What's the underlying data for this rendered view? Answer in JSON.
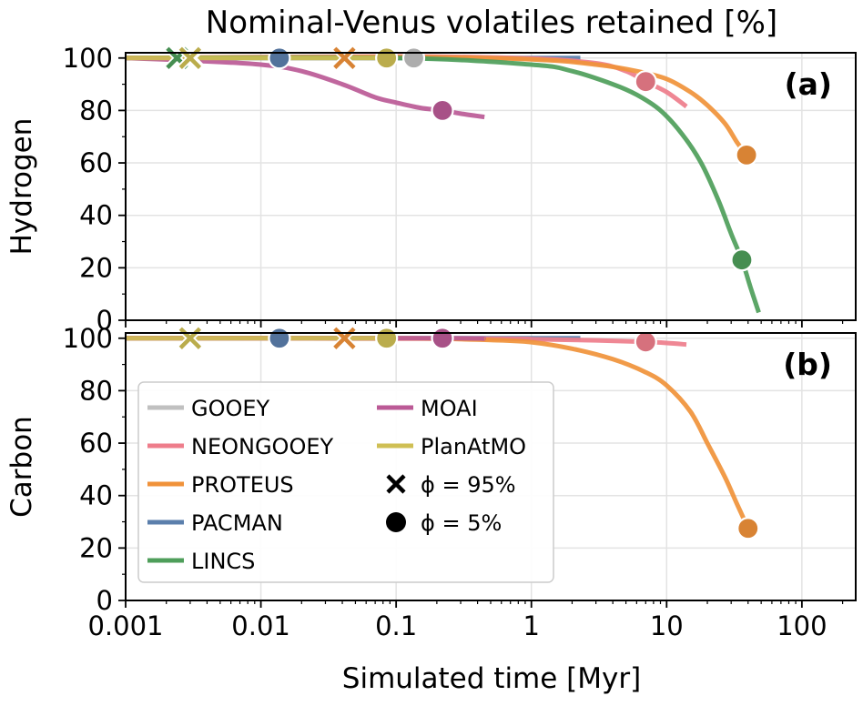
{
  "chart_data": {
    "type": "line",
    "title": "Nominal-Venus volatiles retained [%]",
    "xlabel": "Simulated time [Myr]",
    "xscale": "log",
    "xlim": [
      0.001,
      250
    ],
    "xticks": [
      0.001,
      0.01,
      0.1,
      1,
      10,
      100
    ],
    "xticklabels": [
      "0.001",
      "0.01",
      "0.1",
      "1",
      "10",
      "100"
    ],
    "grid": true,
    "legend_position": "lower-left of panel (b)",
    "legend": [
      {
        "label": "GOOEY",
        "kind": "line",
        "color": "#c0c0c0"
      },
      {
        "label": "NEONGOOEY",
        "kind": "line",
        "color": "#ee7d8b"
      },
      {
        "label": "PROTEUS",
        "kind": "line",
        "color": "#f0923a"
      },
      {
        "label": "PACMAN",
        "kind": "line",
        "color": "#5b7fac"
      },
      {
        "label": "LINCS",
        "kind": "line",
        "color": "#4e9e5a"
      },
      {
        "label": "MOAI",
        "kind": "line",
        "color": "#bb5a96"
      },
      {
        "label": "PlanAtMO",
        "kind": "line",
        "color": "#cfbf54"
      },
      {
        "label": "$\\phi = 95\\%$",
        "kind": "cross",
        "color": "#000000",
        "text": "ϕ = 95%"
      },
      {
        "label": "$\\phi = 5\\%$",
        "kind": "dot",
        "color": "#000000",
        "text": "ϕ = 5%"
      }
    ],
    "panels": [
      {
        "tag": "(a)",
        "ylabel": "Hydrogen",
        "ylim": [
          0,
          102
        ],
        "yticks": [
          0,
          20,
          40,
          60,
          80,
          100
        ],
        "series": [
          {
            "name": "GOOEY",
            "color": "#c0c0c0",
            "x": [
              0.001,
              0.135
            ],
            "y": [
              100,
              100
            ],
            "x95": 0.0031,
            "x5": 0.135,
            "y5": 100
          },
          {
            "name": "PACMAN",
            "color": "#5b7fac",
            "x": [
              0.001,
              2.3
            ],
            "y": [
              100,
              100
            ],
            "x95": 0.0031,
            "x5": 0.0137,
            "y5": 100
          },
          {
            "name": "NEONGOOEY",
            "color": "#ee7d8b",
            "x": [
              0.001,
              0.1,
              1,
              3,
              5,
              7,
              10,
              14
            ],
            "y": [
              100,
              100.6,
              99.8,
              98,
              95,
              91,
              87,
              81.5
            ],
            "x95": 0.0031,
            "x5": 7.0,
            "y5": 91
          },
          {
            "name": "PROTEUS",
            "color": "#f0923a",
            "x": [
              0.001,
              0.1,
              1,
              3,
              6,
              10,
              15,
              20,
              27,
              33,
              39
            ],
            "y": [
              100,
              100.4,
              99.5,
              97.5,
              95,
              92,
              87,
              82,
              75,
              68,
              63
            ],
            "x95": 0.0415,
            "x5": 39.0,
            "y5": 63
          },
          {
            "name": "LINCS",
            "color": "#4e9e5a",
            "x": [
              0.001,
              0.1,
              1,
              2,
              4,
              6,
              9,
              13,
              18,
              24,
              30,
              36,
              42,
              48
            ],
            "y": [
              100,
              100,
              97.5,
              95,
              90,
              86,
              80,
              71,
              60,
              46,
              33,
              23,
              12,
              3
            ],
            "x95": 0.0024,
            "x5": 36.0,
            "y5": 23
          },
          {
            "name": "MOAI",
            "color": "#bb5a96",
            "x": [
              0.001,
              0.003,
              0.01,
              0.02,
              0.04,
              0.07,
              0.1,
              0.15,
              0.22,
              0.3,
              0.45
            ],
            "y": [
              100,
              99,
              97.5,
              95,
              90,
              85,
              83,
              81,
              80,
              78.8,
              77.5
            ],
            "x95": 0.003,
            "x5": 0.22,
            "y5": 80
          },
          {
            "name": "PlanAtMO",
            "color": "#cfbf54",
            "x": [
              0.001,
              0.085
            ],
            "y": [
              100,
              100
            ],
            "x95": 0.003,
            "x5": 0.085,
            "y5": 100
          }
        ]
      },
      {
        "tag": "(b)",
        "ylabel": "Carbon",
        "ylim": [
          0,
          102
        ],
        "yticks": [
          0,
          20,
          40,
          60,
          80,
          100
        ],
        "series": [
          {
            "name": "GOOEY",
            "color": "#c0c0c0",
            "x": [
              0.001,
              0.085
            ],
            "y": [
              100,
              100
            ],
            "x95": null,
            "x5": null,
            "y5": null
          },
          {
            "name": "PACMAN",
            "color": "#5b7fac",
            "x": [
              0.001,
              2.3
            ],
            "y": [
              100,
              100
            ],
            "x95": 0.003,
            "x5": 0.0137,
            "y5": 100
          },
          {
            "name": "NEONGOOEY",
            "color": "#ee7d8b",
            "x": [
              0.001,
              0.5,
              1,
              3,
              7,
              10,
              14
            ],
            "y": [
              100,
              99.8,
              99.6,
              99.2,
              98.6,
              98.2,
              97.6
            ],
            "x95": 0.003,
            "x5": 7.0,
            "y5": 98.6
          },
          {
            "name": "PROTEUS",
            "color": "#f0923a",
            "x": [
              0.001,
              0.1,
              0.5,
              1,
              2,
              4,
              7,
              10,
              15,
              20,
              27,
              33,
              40
            ],
            "y": [
              100,
              100,
              99.3,
              98.5,
              96,
              92,
              87,
              82,
              72,
              60,
              47,
              37,
              27.5
            ],
            "x95": 0.0415,
            "x5": 40.0,
            "y5": 27.5
          },
          {
            "name": "MOAI",
            "color": "#bb5a96",
            "x": [
              0.001,
              0.22,
              0.45
            ],
            "y": [
              100,
              100,
              99.8
            ],
            "x95": 0.003,
            "x5": 0.22,
            "y5": 100
          },
          {
            "name": "PlanAtMO",
            "color": "#cfbf54",
            "x": [
              0.001,
              0.085
            ],
            "y": [
              100,
              100
            ],
            "x95": 0.003,
            "x5": 0.085,
            "y5": 100
          }
        ]
      }
    ]
  }
}
